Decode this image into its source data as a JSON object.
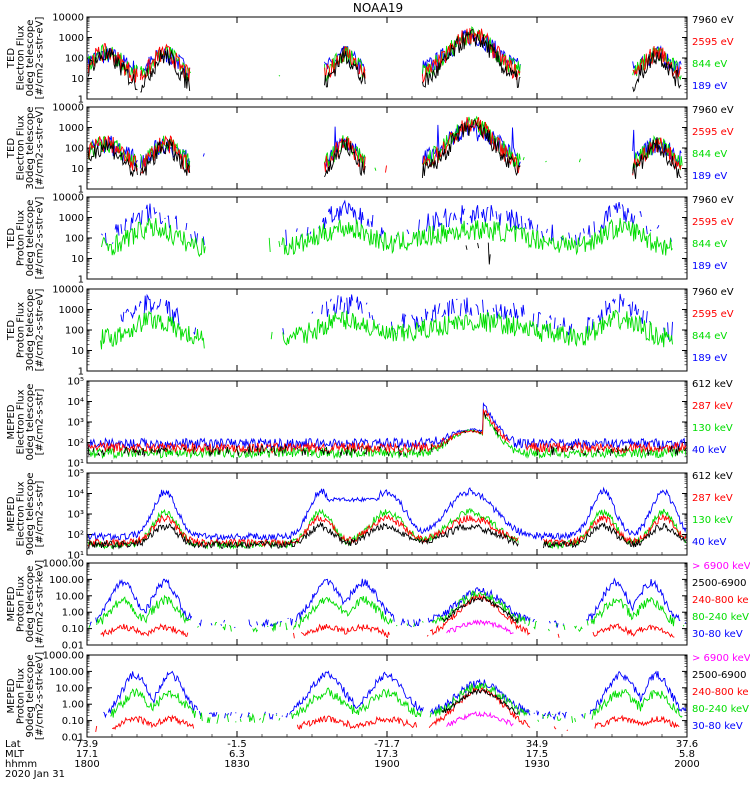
{
  "title": "NOAA19",
  "chart_data": {
    "type": "line",
    "title": "NOAA19",
    "x_time": {
      "start": "1800",
      "end": "2000",
      "ticks": [
        "1800",
        "1830",
        "1900",
        "1930",
        "2000"
      ]
    },
    "x_rows": [
      {
        "label": "Lat",
        "values": [
          "73.9",
          "-1.5",
          "-71.7",
          "34.9",
          "37.6"
        ]
      },
      {
        "label": "MLT",
        "values": [
          "17.1",
          "6.3",
          "17.3",
          "17.5",
          "5.8"
        ]
      },
      {
        "label": "hhmm",
        "values": [
          "1800",
          "1830",
          "1900",
          "1930",
          "2000"
        ]
      }
    ],
    "date": "2020 Jan 31",
    "panels": [
      {
        "ylabel": [
          "TED",
          "Electron Flux",
          "0deg telescope",
          "[#/cm2-s-str-eV]"
        ],
        "yscale": "log",
        "ylim": [
          1,
          10000
        ],
        "yticks": [
          "1",
          "10",
          "100",
          "1000",
          "10000"
        ],
        "legend": [
          {
            "label": "7960 eV",
            "color": "#000000"
          },
          {
            "label": "2595 eV",
            "color": "#ff0000"
          },
          {
            "label": "844 eV",
            "color": "#00dd00"
          },
          {
            "label": "189 eV",
            "color": "#0000ff"
          }
        ]
      },
      {
        "ylabel": [
          "TED",
          "Electron Flux",
          "30deg telescope",
          "[#/cm2-s-str-eV]"
        ],
        "yscale": "log",
        "ylim": [
          1,
          10000
        ],
        "yticks": [
          "1",
          "10",
          "100",
          "1000",
          "10000"
        ],
        "legend": [
          {
            "label": "7960 eV",
            "color": "#000000"
          },
          {
            "label": "2595 eV",
            "color": "#ff0000"
          },
          {
            "label": "844 eV",
            "color": "#00dd00"
          },
          {
            "label": "189 eV",
            "color": "#0000ff"
          }
        ]
      },
      {
        "ylabel": [
          "TED",
          "Proton Flux",
          "0deg telescope",
          "[#/cm2-s-str-eV]"
        ],
        "yscale": "log",
        "ylim": [
          1,
          10000
        ],
        "yticks": [
          "1",
          "10",
          "100",
          "1000",
          "10000"
        ],
        "legend": [
          {
            "label": "7960 eV",
            "color": "#000000"
          },
          {
            "label": "2595 eV",
            "color": "#ff0000"
          },
          {
            "label": "844 eV",
            "color": "#00dd00"
          },
          {
            "label": "189 eV",
            "color": "#0000ff"
          }
        ]
      },
      {
        "ylabel": [
          "TED",
          "Proton Flux",
          "30deg telescope",
          "[#/cm2-s-str-eV]"
        ],
        "yscale": "log",
        "ylim": [
          1,
          10000
        ],
        "yticks": [
          "1",
          "10",
          "100",
          "1000",
          "10000"
        ],
        "legend": [
          {
            "label": "7960 eV",
            "color": "#000000"
          },
          {
            "label": "2595 eV",
            "color": "#ff0000"
          },
          {
            "label": "844 eV",
            "color": "#00dd00"
          },
          {
            "label": "189 eV",
            "color": "#0000ff"
          }
        ]
      },
      {
        "ylabel": [
          "MEPED",
          "Electron Flux",
          "0deg telescope",
          "[#/cm2-s-str]"
        ],
        "yscale": "log",
        "ylim": [
          10,
          100000
        ],
        "yticks": [
          "10¹",
          "10²",
          "10³",
          "10⁴",
          "10⁵"
        ],
        "legend": [
          {
            "label": "612 keV",
            "color": "#000000"
          },
          {
            "label": "287 keV",
            "color": "#ff0000"
          },
          {
            "label": "130 keV",
            "color": "#00dd00"
          },
          {
            "label": "40 keV",
            "color": "#0000ff"
          }
        ]
      },
      {
        "ylabel": [
          "MEPED",
          "Electron Flux",
          "90deg telescope",
          "[#/cm2-s-str]"
        ],
        "yscale": "log",
        "ylim": [
          10,
          100000
        ],
        "yticks": [
          "10¹",
          "10²",
          "10³",
          "10⁴",
          "10⁵"
        ],
        "legend": [
          {
            "label": "612 keV",
            "color": "#000000"
          },
          {
            "label": "287 keV",
            "color": "#ff0000"
          },
          {
            "label": "130 keV",
            "color": "#00dd00"
          },
          {
            "label": "40 keV",
            "color": "#0000ff"
          }
        ]
      },
      {
        "ylabel": [
          "MEPED",
          "Proton Flux",
          "0deg telescope",
          "[#/cm2-s-str-keV]"
        ],
        "yscale": "log",
        "ylim": [
          0.01,
          1000
        ],
        "yticks": [
          "0.01",
          "0.10",
          "1.00",
          "10.00",
          "100.00",
          "1000.00"
        ],
        "legend": [
          {
            "label": "> 6900 keV",
            "color": "#ff00ff"
          },
          {
            "label": "2500-6900",
            "color": "#000000"
          },
          {
            "label": "240-800 ke",
            "color": "#ff0000"
          },
          {
            "label": "80-240 keV",
            "color": "#00dd00"
          },
          {
            "label": "30-80 keV",
            "color": "#0000ff"
          }
        ]
      },
      {
        "ylabel": [
          "MEPED",
          "Proton Flux",
          "90deg telescope",
          "[#/cm2-s-str-keV]"
        ],
        "yscale": "log",
        "ylim": [
          0.01,
          1000
        ],
        "yticks": [
          "0.01",
          "0.10",
          "1.00",
          "10.00",
          "100.00",
          "1000.00"
        ],
        "legend": [
          {
            "label": "> 6900 keV",
            "color": "#ff00ff"
          },
          {
            "label": "2500-6900",
            "color": "#000000"
          },
          {
            "label": "240-800 ke",
            "color": "#ff0000"
          },
          {
            "label": "80-240 keV",
            "color": "#00dd00"
          },
          {
            "label": "30-80 keV",
            "color": "#0000ff"
          }
        ]
      }
    ]
  }
}
